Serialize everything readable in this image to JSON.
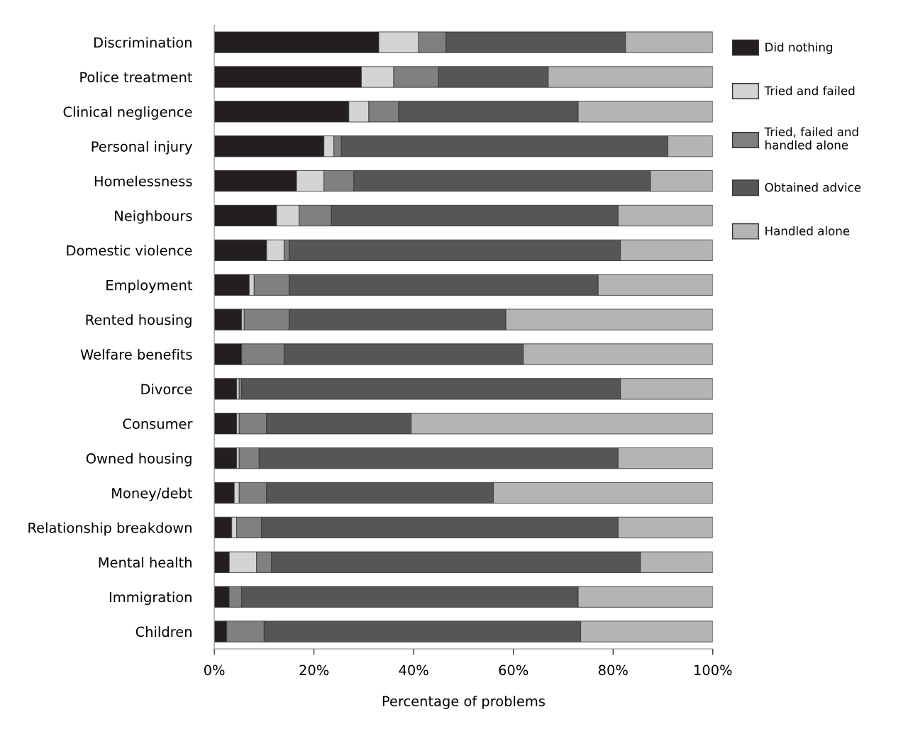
{
  "chart_data": {
    "type": "bar",
    "orientation": "horizontal",
    "stacked": true,
    "xlabel": "Percentage of problems",
    "categories": [
      "Discrimination",
      "Police treatment",
      "Clinical negligence",
      "Personal injury",
      "Homelessness",
      "Neighbours",
      "Domestic violence",
      "Employment",
      "Rented housing",
      "Welfare benefits",
      "Divorce",
      "Consumer",
      "Owned housing",
      "Money/debt",
      "Relationship breakdown",
      "Mental health",
      "Immigration",
      "Children"
    ],
    "series": [
      {
        "name": "Did nothing",
        "color": "#231f20",
        "values": [
          33,
          29.5,
          27,
          22,
          16.5,
          12.5,
          10.5,
          7,
          5.5,
          5.5,
          4.5,
          4.5,
          4.5,
          4,
          3.5,
          3,
          3,
          2.5
        ]
      },
      {
        "name": "Tried and failed",
        "color": "#d4d4d4",
        "values": [
          8,
          6.5,
          4,
          2,
          5.5,
          4.5,
          3.5,
          1,
          0.5,
          0,
          0.5,
          0.5,
          0.5,
          1,
          1,
          5.5,
          0,
          0
        ]
      },
      {
        "name": "Tried, failed and\nhandled alone",
        "color": "#808080",
        "values": [
          5.5,
          9,
          6,
          1.5,
          6,
          6.5,
          1,
          7,
          9,
          8.5,
          0.5,
          5.5,
          4,
          5.5,
          5,
          3,
          2.5,
          7.5
        ]
      },
      {
        "name": "Obtained advice",
        "color": "#565656",
        "values": [
          36,
          22,
          36,
          65.5,
          59.5,
          57.5,
          66.5,
          62,
          43.5,
          48,
          76,
          29,
          72,
          45.5,
          71.5,
          74,
          67.5,
          63.5
        ]
      },
      {
        "name": "Handled alone",
        "color": "#b4b4b4",
        "values": [
          17.5,
          33,
          27,
          9,
          12.5,
          19,
          18.5,
          23,
          41.5,
          38,
          18.5,
          60.5,
          19,
          44,
          19,
          14.5,
          27,
          26.5
        ]
      }
    ],
    "xlim": [
      0,
      100
    ],
    "xticks": [
      {
        "value": 0,
        "label": "0%"
      },
      {
        "value": 20,
        "label": "20%"
      },
      {
        "value": 40,
        "label": "40%"
      },
      {
        "value": 60,
        "label": "60%"
      },
      {
        "value": 80,
        "label": "80%"
      },
      {
        "value": 100,
        "label": "100%"
      }
    ],
    "grid": false,
    "legend": "right"
  }
}
